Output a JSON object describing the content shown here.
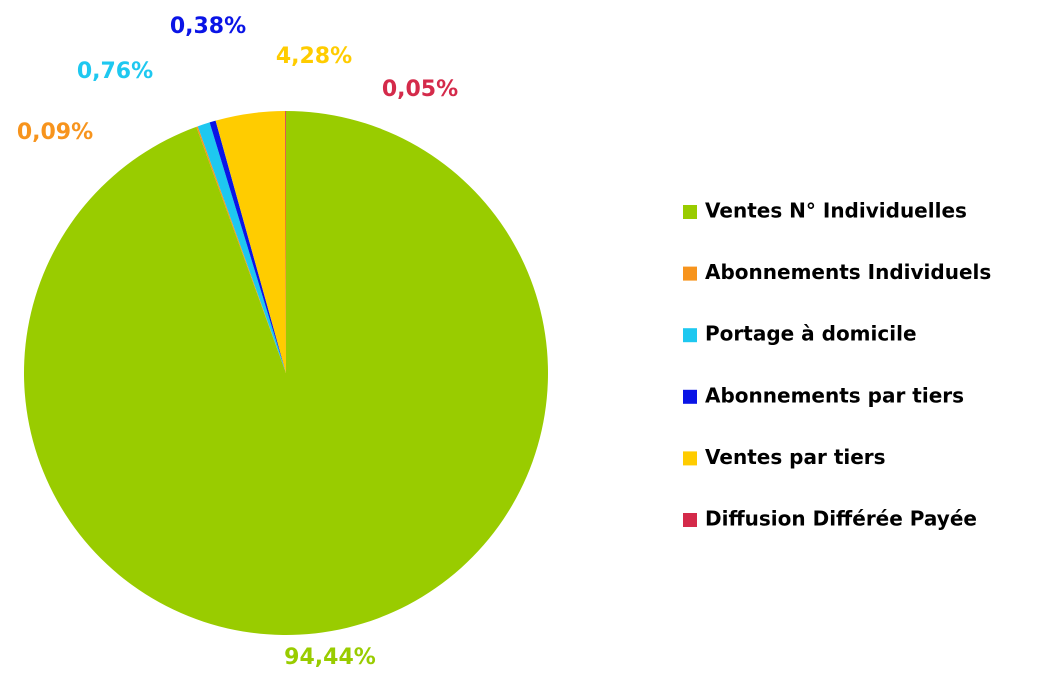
{
  "chart_data": {
    "type": "pie",
    "categories": [
      "Ventes N° Individuelles",
      "Abonnements Individuels",
      "Portage à domicile",
      "Abonnements par tiers",
      "Ventes par tiers",
      "Diffusion Différée Payée"
    ],
    "values": [
      94.44,
      0.09,
      0.76,
      0.38,
      4.28,
      0.05
    ],
    "value_labels": [
      "94,44%",
      "0,09%",
      "0,76%",
      "0,38%",
      "4,28%",
      "0,05%"
    ],
    "colors": [
      "#99cc00",
      "#f7941d",
      "#1ec8f0",
      "#0a14e6",
      "#ffcc00",
      "#d42a4a"
    ],
    "legend": "right"
  }
}
